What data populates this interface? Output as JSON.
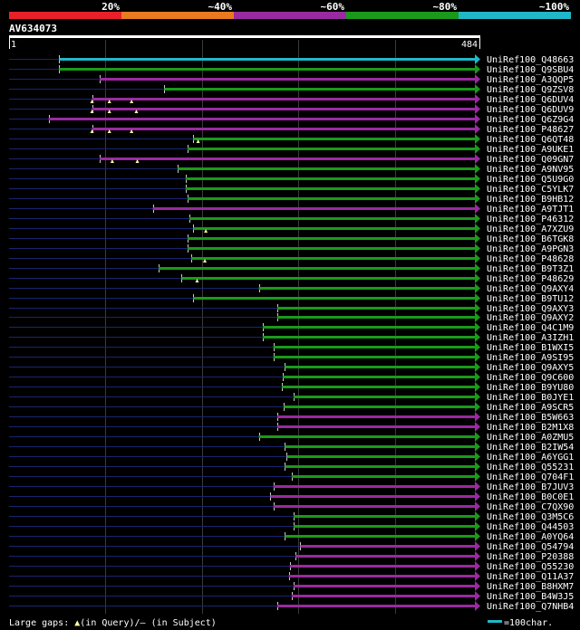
{
  "chart_data": {
    "type": "alignment-overview",
    "query_id": "AV634073",
    "query_start": 1,
    "query_length": 484,
    "scale_note": "=100char.",
    "identity_legend": [
      {
        "label": "20%",
        "color": "#e8202a"
      },
      {
        "label": "~40%",
        "color": "#e87a20"
      },
      {
        "label": "~60%",
        "color": "#9a2aa0"
      },
      {
        "label": "~80%",
        "color": "#1a9a1a"
      },
      {
        "label": "~100%",
        "color": "#20b8c8"
      }
    ],
    "gap_legend": {
      "prefix": "Large gaps: ",
      "query_marker": "▲",
      "query_text": "(in Query)/",
      "subject_marker": "—",
      "subject_text": " (in Subject)"
    },
    "hits": [
      {
        "name": "UniRef100_Q48663",
        "start": 53,
        "end": 484,
        "ident": "~100%",
        "qgaps": []
      },
      {
        "name": "UniRef100_Q9SBU4",
        "start": 53,
        "end": 484,
        "ident": "~80%",
        "qgaps": []
      },
      {
        "name": "UniRef100_A3QQP5",
        "start": 95,
        "end": 484,
        "ident": "~60%",
        "qgaps": []
      },
      {
        "name": "UniRef100_Q9ZSV8",
        "start": 162,
        "end": 484,
        "ident": "~80%",
        "qgaps": []
      },
      {
        "name": "UniRef100_Q6DUV4",
        "start": 87,
        "end": 484,
        "ident": "~60%",
        "qgaps": [
          87,
          105,
          128
        ]
      },
      {
        "name": "UniRef100_Q6DUV9",
        "start": 87,
        "end": 484,
        "ident": "~60%",
        "qgaps": [
          87,
          105,
          133
        ]
      },
      {
        "name": "UniRef100_Q6Z9G4",
        "start": 42,
        "end": 484,
        "ident": "~60%",
        "qgaps": []
      },
      {
        "name": "UniRef100_P48627",
        "start": 87,
        "end": 484,
        "ident": "~60%",
        "qgaps": [
          87,
          105,
          128
        ]
      },
      {
        "name": "UniRef100_Q6QT48",
        "start": 192,
        "end": 484,
        "ident": "~80%",
        "qgaps": [
          197
        ]
      },
      {
        "name": "UniRef100_A9UKE1",
        "start": 186,
        "end": 484,
        "ident": "~80%",
        "qgaps": []
      },
      {
        "name": "UniRef100_Q09GN7",
        "start": 95,
        "end": 484,
        "ident": "~60%",
        "qgaps": [
          108,
          134
        ]
      },
      {
        "name": "UniRef100_A9NV95",
        "start": 176,
        "end": 484,
        "ident": "~80%",
        "qgaps": []
      },
      {
        "name": "UniRef100_Q5U9G0",
        "start": 184,
        "end": 484,
        "ident": "~80%",
        "qgaps": []
      },
      {
        "name": "UniRef100_C5YLK7",
        "start": 184,
        "end": 484,
        "ident": "~80%",
        "qgaps": []
      },
      {
        "name": "UniRef100_B9HB12",
        "start": 186,
        "end": 484,
        "ident": "~80%",
        "qgaps": []
      },
      {
        "name": "UniRef100_A9TJT1",
        "start": 150,
        "end": 484,
        "ident": "~60%",
        "qgaps": []
      },
      {
        "name": "UniRef100_P46312",
        "start": 188,
        "end": 484,
        "ident": "~80%",
        "qgaps": []
      },
      {
        "name": "UniRef100_A7XZU9",
        "start": 192,
        "end": 484,
        "ident": "~80%",
        "qgaps": [
          205
        ]
      },
      {
        "name": "UniRef100_B6TGK8",
        "start": 186,
        "end": 484,
        "ident": "~80%",
        "qgaps": []
      },
      {
        "name": "UniRef100_A9PGN3",
        "start": 186,
        "end": 484,
        "ident": "~80%",
        "qgaps": []
      },
      {
        "name": "UniRef100_P48628",
        "start": 190,
        "end": 484,
        "ident": "~80%",
        "qgaps": [
          204
        ]
      },
      {
        "name": "UniRef100_B9T3Z1",
        "start": 156,
        "end": 484,
        "ident": "~80%",
        "qgaps": []
      },
      {
        "name": "UniRef100_P48629",
        "start": 180,
        "end": 484,
        "ident": "~80%",
        "qgaps": [
          196
        ]
      },
      {
        "name": "UniRef100_Q9AXY4",
        "start": 260,
        "end": 484,
        "ident": "~80%",
        "qgaps": []
      },
      {
        "name": "UniRef100_B9TU12",
        "start": 192,
        "end": 484,
        "ident": "~80%",
        "qgaps": []
      },
      {
        "name": "UniRef100_Q9AXY3",
        "start": 279,
        "end": 484,
        "ident": "~80%",
        "qgaps": []
      },
      {
        "name": "UniRef100_Q9AXY2",
        "start": 279,
        "end": 484,
        "ident": "~80%",
        "qgaps": []
      },
      {
        "name": "UniRef100_Q4C1M9",
        "start": 264,
        "end": 484,
        "ident": "~80%",
        "qgaps": []
      },
      {
        "name": "UniRef100_A3IZH1",
        "start": 264,
        "end": 484,
        "ident": "~80%",
        "qgaps": []
      },
      {
        "name": "UniRef100_B1WXI5",
        "start": 275,
        "end": 484,
        "ident": "~80%",
        "qgaps": []
      },
      {
        "name": "UniRef100_A9SI95",
        "start": 275,
        "end": 484,
        "ident": "~80%",
        "qgaps": []
      },
      {
        "name": "UniRef100_Q9AXY5",
        "start": 287,
        "end": 484,
        "ident": "~80%",
        "qgaps": []
      },
      {
        "name": "UniRef100_Q9C600",
        "start": 285,
        "end": 484,
        "ident": "~80%",
        "qgaps": []
      },
      {
        "name": "UniRef100_B9YU80",
        "start": 284,
        "end": 484,
        "ident": "~80%",
        "qgaps": []
      },
      {
        "name": "UniRef100_B0JYE1",
        "start": 296,
        "end": 484,
        "ident": "~80%",
        "qgaps": []
      },
      {
        "name": "UniRef100_A9SCR5",
        "start": 286,
        "end": 484,
        "ident": "~80%",
        "qgaps": []
      },
      {
        "name": "UniRef100_B5W663",
        "start": 279,
        "end": 484,
        "ident": "~60%",
        "qgaps": []
      },
      {
        "name": "UniRef100_B2M1X8",
        "start": 279,
        "end": 484,
        "ident": "~60%",
        "qgaps": []
      },
      {
        "name": "UniRef100_A0ZMU5",
        "start": 260,
        "end": 484,
        "ident": "~80%",
        "qgaps": []
      },
      {
        "name": "UniRef100_B2IW54",
        "start": 287,
        "end": 484,
        "ident": "~80%",
        "qgaps": []
      },
      {
        "name": "UniRef100_A6YGG1",
        "start": 289,
        "end": 484,
        "ident": "~80%",
        "qgaps": []
      },
      {
        "name": "UniRef100_Q55231",
        "start": 287,
        "end": 484,
        "ident": "~80%",
        "qgaps": []
      },
      {
        "name": "UniRef100_Q704F1",
        "start": 294,
        "end": 484,
        "ident": "~80%",
        "qgaps": []
      },
      {
        "name": "UniRef100_B7JUV3",
        "start": 275,
        "end": 484,
        "ident": "~60%",
        "qgaps": []
      },
      {
        "name": "UniRef100_B0C0E1",
        "start": 272,
        "end": 484,
        "ident": "~60%",
        "qgaps": []
      },
      {
        "name": "UniRef100_C7QX90",
        "start": 275,
        "end": 484,
        "ident": "~60%",
        "qgaps": []
      },
      {
        "name": "UniRef100_Q3M5C6",
        "start": 296,
        "end": 484,
        "ident": "~80%",
        "qgaps": []
      },
      {
        "name": "UniRef100_Q44503",
        "start": 296,
        "end": 484,
        "ident": "~80%",
        "qgaps": []
      },
      {
        "name": "UniRef100_A0YQ64",
        "start": 287,
        "end": 484,
        "ident": "~80%",
        "qgaps": []
      },
      {
        "name": "UniRef100_Q54794",
        "start": 303,
        "end": 484,
        "ident": "~60%",
        "qgaps": []
      },
      {
        "name": "UniRef100_P20388",
        "start": 298,
        "end": 484,
        "ident": "~60%",
        "qgaps": []
      },
      {
        "name": "UniRef100_Q55230",
        "start": 292,
        "end": 484,
        "ident": "~60%",
        "qgaps": []
      },
      {
        "name": "UniRef100_Q11A37",
        "start": 291,
        "end": 484,
        "ident": "~60%",
        "qgaps": []
      },
      {
        "name": "UniRef100_B8HXM7",
        "start": 296,
        "end": 484,
        "ident": "~60%",
        "qgaps": []
      },
      {
        "name": "UniRef100_B4W3J5",
        "start": 294,
        "end": 484,
        "ident": "~60%",
        "qgaps": []
      },
      {
        "name": "UniRef100_Q7NHB4",
        "start": 279,
        "end": 484,
        "ident": "~60%",
        "qgaps": []
      }
    ]
  }
}
